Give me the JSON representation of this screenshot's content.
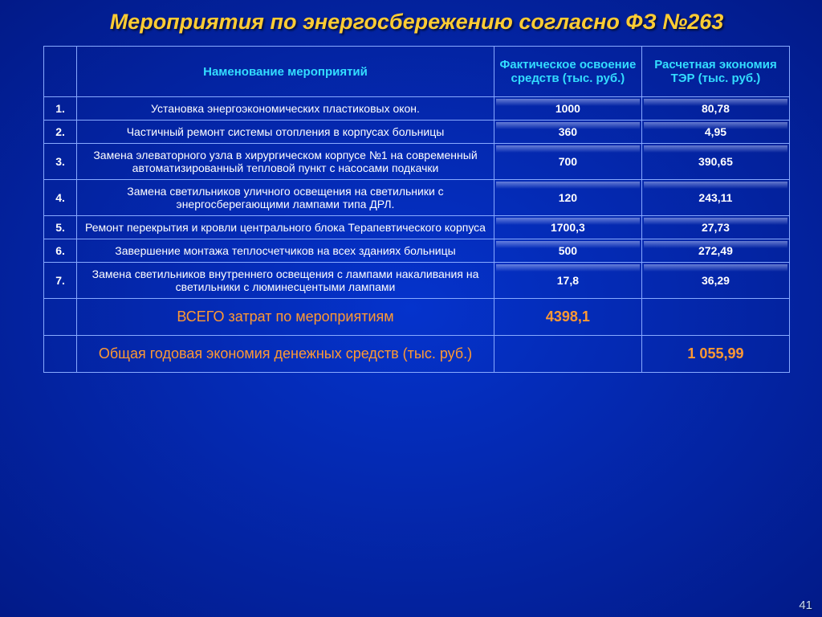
{
  "title": "Мероприятия по энергосбережению согласно ФЗ №263",
  "headers": {
    "name": "Наменование мероприятий",
    "actual": "Фактическое освоение средств (тыс. руб.)",
    "savings": "Расчетная экономия ТЭР (тыс. руб.)"
  },
  "rows": [
    {
      "num": "1.",
      "name": "Установка энергоэкономических пластиковых окон.",
      "actual": "1000",
      "savings": "80,78"
    },
    {
      "num": "2.",
      "name": "Частичный ремонт системы отопления в корпусах больницы",
      "actual": "360",
      "savings": "4,95"
    },
    {
      "num": "3.",
      "name": "Замена элеваторного узла в хирургическом корпусе №1 на современный автоматизированный тепловой пункт с насосами подкачки",
      "actual": "700",
      "savings": "390,65"
    },
    {
      "num": "4.",
      "name": "Замена светильников уличного освещения на светильники с энергосберегающими лампами типа ДРЛ.",
      "actual": "120",
      "savings": "243,11"
    },
    {
      "num": "5.",
      "name": "Ремонт перекрытия и кровли центрального блока Терапевтического корпуса",
      "actual": "1700,3",
      "savings": "27,73"
    },
    {
      "num": "6.",
      "name": "Завершение монтажа теплосчетчиков на всех зданиях больницы",
      "actual": "500",
      "savings": "272,49"
    },
    {
      "num": "7.",
      "name": "Замена светильников внутреннего освещения с лампами накаливания на светильники с люминесцентыми лампами",
      "actual": "17,8",
      "savings": "36,29"
    }
  ],
  "totals": {
    "costs_label": "ВСЕГО затрат по мероприятиям",
    "costs_value": "4398,1",
    "savings_label": "Общая годовая экономия денежных средств (тыс. руб.)",
    "savings_value": "1 055,99"
  },
  "pagenum": "41",
  "colors": {
    "title": "#ffcc33",
    "header_text": "#33ddff",
    "cell_text": "#ffffff",
    "total_text": "#ff9933",
    "border": "#88aaff"
  }
}
